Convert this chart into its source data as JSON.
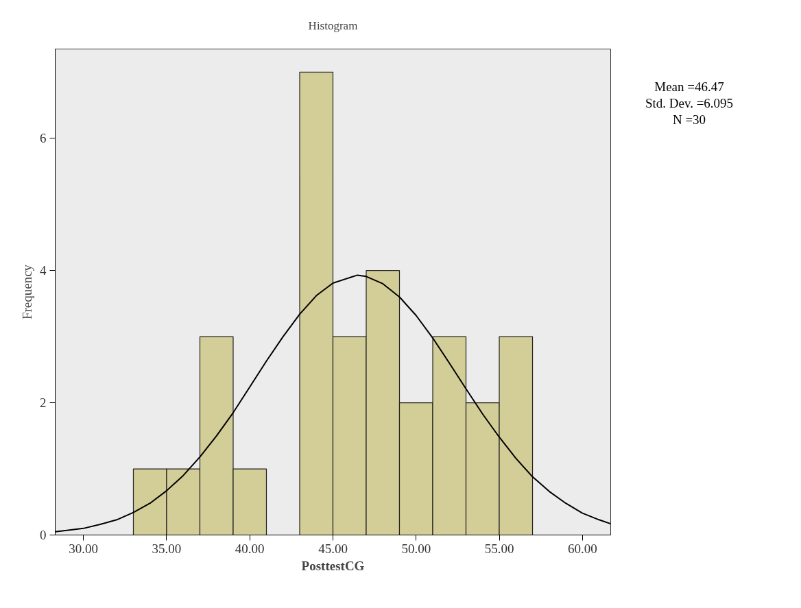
{
  "chart_data": {
    "type": "histogram",
    "title": "Histogram",
    "xlabel": "PosttestCG",
    "ylabel": "Frequency",
    "bins": [
      33,
      35,
      37,
      39,
      41,
      43,
      45,
      47,
      49,
      51,
      53,
      55,
      57
    ],
    "values": [
      1,
      1,
      3,
      1,
      0,
      7,
      3,
      4,
      2,
      3,
      2,
      3
    ],
    "color": "#d3ce97",
    "series": [
      {
        "type": "line",
        "color": "#000000",
        "x": [
          28.3,
          29,
          30,
          31,
          32,
          33,
          34,
          35,
          36,
          37,
          38,
          39,
          40,
          41,
          42,
          43,
          44,
          45,
          46.47,
          47,
          48,
          49,
          50,
          51,
          52,
          53,
          54,
          55,
          56,
          57,
          58,
          59,
          60,
          61,
          61.7
        ],
        "values": [
          0.05,
          0.07,
          0.1,
          0.16,
          0.23,
          0.34,
          0.48,
          0.67,
          0.9,
          1.18,
          1.5,
          1.85,
          2.24,
          2.63,
          3.0,
          3.34,
          3.62,
          3.81,
          3.93,
          3.91,
          3.8,
          3.6,
          3.32,
          2.98,
          2.6,
          2.21,
          1.83,
          1.48,
          1.16,
          0.88,
          0.66,
          0.48,
          0.33,
          0.23,
          0.17
        ]
      }
    ],
    "xlim": [
      28.3,
      61.7
    ],
    "ylim": [
      0,
      7.35
    ],
    "xticks": [
      {
        "value": 30,
        "label": "30.00"
      },
      {
        "value": 35,
        "label": "35.00"
      },
      {
        "value": 40,
        "label": "40.00"
      },
      {
        "value": 45,
        "label": "45.00"
      },
      {
        "value": 50,
        "label": "50.00"
      },
      {
        "value": 55,
        "label": "55.00"
      },
      {
        "value": 60,
        "label": "60.00"
      }
    ],
    "yticks": [
      0,
      2,
      4,
      6
    ],
    "annotations": [
      "Mean =46.47",
      "Std. Dev. =6.095",
      "N =30"
    ],
    "grid": false
  }
}
